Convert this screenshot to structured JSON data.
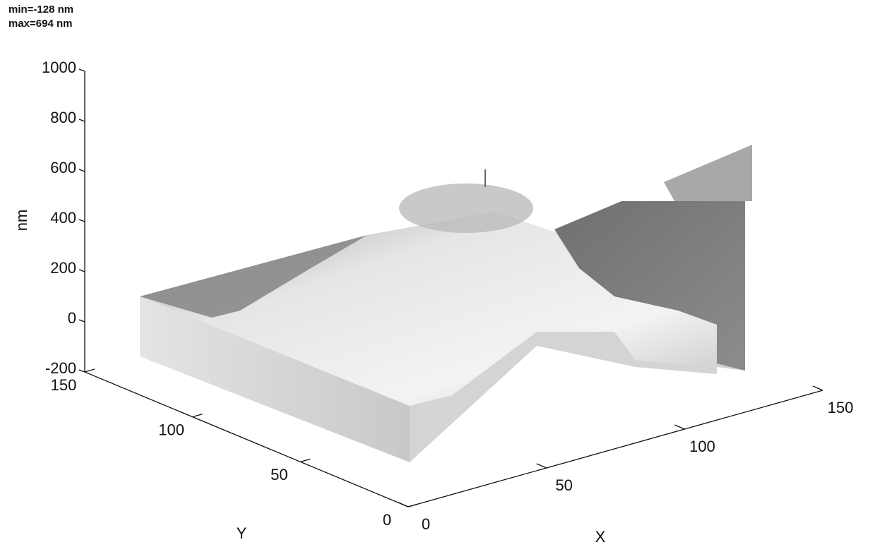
{
  "chart_data": {
    "type": "surface3d",
    "annotations": [
      "min=-128 nm",
      "max=694 nm"
    ],
    "zlabel": "nm",
    "xlabel": "X",
    "ylabel": "Y",
    "zlim": [
      -200,
      1000
    ],
    "zticks": [
      -200,
      0,
      200,
      400,
      600,
      800,
      1000
    ],
    "xlim": [
      0,
      150
    ],
    "xticks": [
      0,
      50,
      100,
      150
    ],
    "ylim": [
      0,
      150
    ],
    "yticks": [
      0,
      50,
      100,
      150
    ]
  }
}
